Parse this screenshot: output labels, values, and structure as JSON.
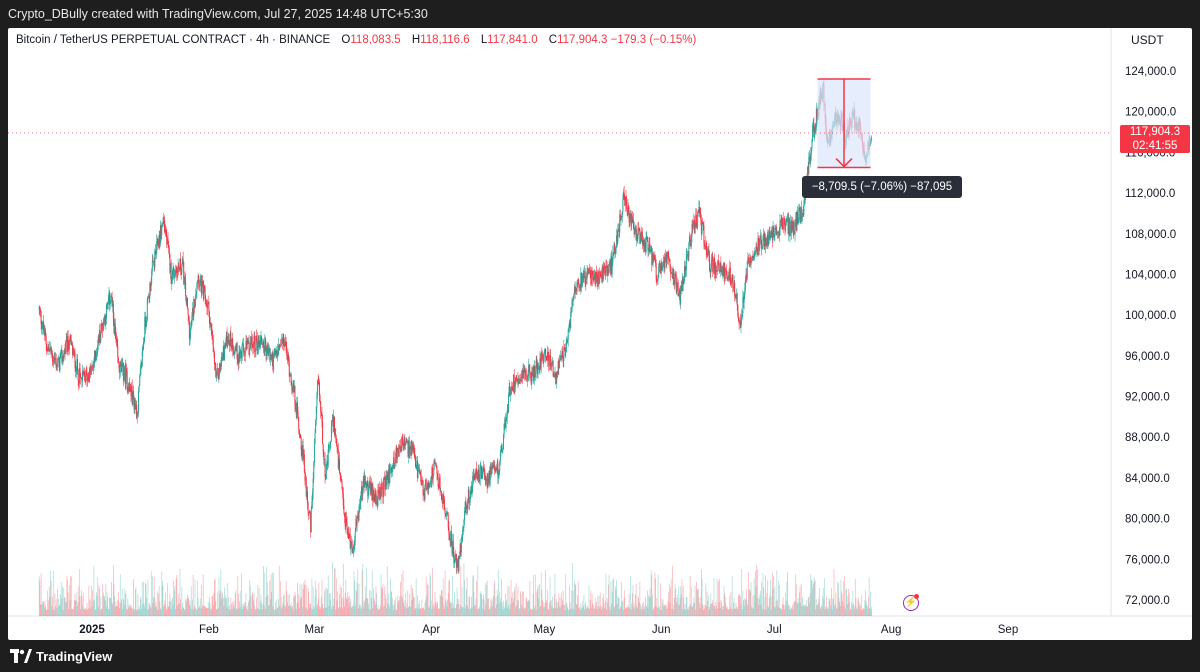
{
  "header": {
    "credit": "Crypto_DBully created with TradingView.com, Jul 27, 2025 14:48 UTC+5:30"
  },
  "legend": {
    "symbol": "Bitcoin / TetherUS PERPETUAL CONTRACT · 4h · BINANCE",
    "o_label": "O",
    "o_value": "118,083.5",
    "h_label": "H",
    "h_value": "118,116.6",
    "l_label": "L",
    "l_value": "117,841.0",
    "c_label": "C",
    "c_value": "117,904.3",
    "change": "−179.3 (−0.15%)"
  },
  "axis": {
    "currency": "USDT"
  },
  "price_label": {
    "price": "117,904.3",
    "countdown": "02:41:55"
  },
  "measure": {
    "text": "−8,709.5 (−7.06%) −87,095"
  },
  "footer": {
    "brand": "TradingView"
  },
  "colors": {
    "up": "#26a69a",
    "down": "#f23645",
    "measure_fill": "#dbe5fb",
    "measure_line": "#f23645"
  },
  "icons": {
    "bolt": "lightning-icon"
  },
  "chart_data": {
    "type": "candlestick",
    "interval": "4h",
    "y_ticks": [
      "124,000.0",
      "120,000.0",
      "116,000.0",
      "112,000.0",
      "108,000.0",
      "104,000.0",
      "100,000.0",
      "96,000.0",
      "92,000.0",
      "88,000.0",
      "84,000.0",
      "80,000.0",
      "76,000.0",
      "72,000.0"
    ],
    "ylim": [
      72000,
      124000
    ],
    "x_ticks": [
      "2025",
      "Feb",
      "Mar",
      "Apr",
      "May",
      "Jun",
      "Jul",
      "Aug",
      "Sep"
    ],
    "close_path": [
      [
        "2024-12-18",
        100500
      ],
      [
        "2024-12-20",
        97000
      ],
      [
        "2024-12-23",
        95000
      ],
      [
        "2024-12-26",
        97500
      ],
      [
        "2024-12-29",
        93500
      ],
      [
        "2025-01-01",
        94500
      ],
      [
        "2025-01-03",
        98000
      ],
      [
        "2025-01-06",
        102000
      ],
      [
        "2025-01-08",
        95000
      ],
      [
        "2025-01-10",
        94000
      ],
      [
        "2025-01-13",
        90500
      ],
      [
        "2025-01-15",
        99000
      ],
      [
        "2025-01-17",
        104500
      ],
      [
        "2025-01-20",
        109500
      ],
      [
        "2025-01-22",
        104000
      ],
      [
        "2025-01-25",
        105000
      ],
      [
        "2025-01-27",
        98000
      ],
      [
        "2025-01-29",
        104000
      ],
      [
        "2025-02-01",
        100500
      ],
      [
        "2025-02-03",
        93500
      ],
      [
        "2025-02-06",
        98000
      ],
      [
        "2025-02-09",
        96000
      ],
      [
        "2025-02-12",
        97000
      ],
      [
        "2025-02-15",
        97500
      ],
      [
        "2025-02-18",
        95500
      ],
      [
        "2025-02-21",
        97500
      ],
      [
        "2025-02-24",
        91500
      ],
      [
        "2025-02-26",
        86000
      ],
      [
        "2025-02-28",
        79000
      ],
      [
        "2025-03-02",
        94000
      ],
      [
        "2025-03-04",
        84000
      ],
      [
        "2025-03-06",
        90000
      ],
      [
        "2025-03-09",
        80000
      ],
      [
        "2025-03-11",
        77000
      ],
      [
        "2025-03-14",
        83500
      ],
      [
        "2025-03-18",
        82000
      ],
      [
        "2025-03-21",
        84500
      ],
      [
        "2025-03-24",
        87500
      ],
      [
        "2025-03-27",
        86500
      ],
      [
        "2025-03-30",
        82500
      ],
      [
        "2025-04-02",
        85000
      ],
      [
        "2025-04-04",
        82000
      ],
      [
        "2025-04-07",
        76500
      ],
      [
        "2025-04-08",
        75000
      ],
      [
        "2025-04-10",
        81000
      ],
      [
        "2025-04-13",
        84500
      ],
      [
        "2025-04-16",
        84000
      ],
      [
        "2025-04-19",
        85000
      ],
      [
        "2025-04-22",
        93000
      ],
      [
        "2025-04-25",
        94500
      ],
      [
        "2025-04-28",
        94000
      ],
      [
        "2025-05-01",
        96500
      ],
      [
        "2025-05-04",
        94000
      ],
      [
        "2025-05-07",
        97000
      ],
      [
        "2025-05-09",
        103000
      ],
      [
        "2025-05-12",
        104000
      ],
      [
        "2025-05-15",
        103500
      ],
      [
        "2025-05-19",
        105000
      ],
      [
        "2025-05-22",
        111500
      ],
      [
        "2025-05-25",
        108000
      ],
      [
        "2025-05-28",
        107000
      ],
      [
        "2025-05-31",
        104000
      ],
      [
        "2025-06-03",
        105500
      ],
      [
        "2025-06-06",
        102000
      ],
      [
        "2025-06-09",
        108000
      ],
      [
        "2025-06-11",
        110000
      ],
      [
        "2025-06-14",
        105000
      ],
      [
        "2025-06-17",
        104500
      ],
      [
        "2025-06-20",
        103500
      ],
      [
        "2025-06-22",
        99000
      ],
      [
        "2025-06-24",
        105500
      ],
      [
        "2025-06-27",
        107000
      ],
      [
        "2025-06-30",
        107500
      ],
      [
        "2025-07-03",
        109000
      ],
      [
        "2025-07-06",
        108500
      ],
      [
        "2025-07-09",
        111000
      ],
      [
        "2025-07-11",
        117500
      ],
      [
        "2025-07-14",
        122500
      ],
      [
        "2025-07-15",
        117000
      ],
      [
        "2025-07-18",
        120000
      ],
      [
        "2025-07-20",
        117500
      ],
      [
        "2025-07-22",
        119500
      ],
      [
        "2025-07-24",
        118000
      ],
      [
        "2025-07-25",
        115500
      ],
      [
        "2025-07-27",
        117904.3
      ]
    ],
    "measure_range": {
      "start": "2025-07-13",
      "end": "2025-07-26",
      "high": 123218,
      "low": 114508.5,
      "change": -8709.5,
      "change_pct": -7.06,
      "ticks": -87095
    }
  }
}
